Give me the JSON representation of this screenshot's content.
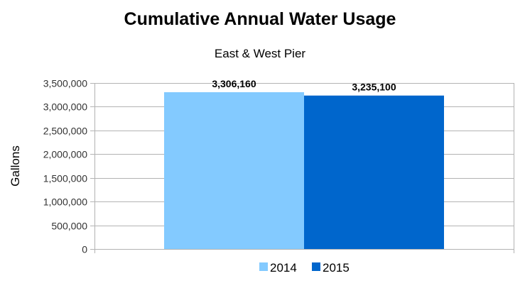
{
  "chart_data": {
    "type": "bar",
    "title": "Cumulative Annual Water Usage",
    "subtitle": "East & West Pier",
    "xlabel": "",
    "ylabel": "Gallons",
    "ylim": [
      0,
      3500000
    ],
    "yticks": [
      "0",
      "500,000",
      "1,000,000",
      "1,500,000",
      "2,000,000",
      "2,500,000",
      "3,000,000",
      "3,500,000"
    ],
    "ytick_values": [
      0,
      500000,
      1000000,
      1500000,
      2000000,
      2500000,
      3000000,
      3500000
    ],
    "grid": true,
    "legend_placement": "bottom",
    "series": [
      {
        "name": "2014",
        "values": [
          3306160
        ],
        "label": "3,306,160",
        "color": "#83CAFF"
      },
      {
        "name": "2015",
        "values": [
          3235100
        ],
        "label": "3,235,100",
        "color": "#0066CC"
      }
    ]
  }
}
